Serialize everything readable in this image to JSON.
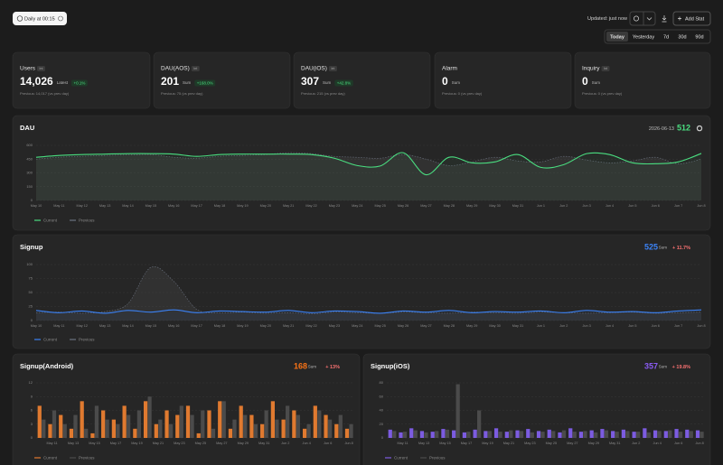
{
  "header": {
    "schedule": "Daily at 00:15",
    "updated": "Updated: just now",
    "add_button": "Add Stat"
  },
  "ranges": {
    "options": [
      "Today",
      "Yesterday",
      "7d",
      "30d",
      "90d"
    ],
    "active": 0
  },
  "stats": [
    {
      "title": "Users",
      "badge": "Int",
      "value": "14,026",
      "kind": "Latest",
      "change": "+0.1%",
      "previous": "Previous: 14,017 (vs prev day)"
    },
    {
      "title": "DAU(AOS)",
      "badge": "Int",
      "value": "201",
      "kind": "Sum",
      "change": "+168.0%",
      "previous": "Previous: 75 (vs prev day)"
    },
    {
      "title": "DAU(iOS)",
      "badge": "Int",
      "value": "307",
      "kind": "Sum",
      "change": "+42.8%",
      "previous": "Previous: 215 (vs prev day)"
    },
    {
      "title": "Alarm",
      "value": "0",
      "kind": "Sum",
      "previous": "Previous: 0 (vs prev day)"
    },
    {
      "title": "Inquiry",
      "badge": "Int",
      "value": "0",
      "kind": "Sum",
      "previous": "Previous: 0 (vs prev day)"
    }
  ],
  "charts": [
    {
      "type": "line",
      "title": "DAU",
      "date": "2026-06-13",
      "total": 512,
      "total_color": "#4ade80",
      "categories": [
        "May 10",
        "May 11",
        "May 12",
        "May 13",
        "May 14",
        "May 15",
        "May 16",
        "May 17",
        "May 18",
        "May 19",
        "May 20",
        "May 21",
        "May 22",
        "May 23",
        "May 24",
        "May 25",
        "May 26",
        "May 27",
        "May 28",
        "May 29",
        "May 30",
        "May 31",
        "Jun 1",
        "Jun 2",
        "Jun 3",
        "Jun 4",
        "Jun 5",
        "Jun 6",
        "Jun 7",
        "Jun 8"
      ],
      "ylim": [
        0,
        600
      ],
      "yticks": [
        0,
        150,
        300,
        450,
        600
      ],
      "series": [
        {
          "name": "Current",
          "color": "#4ade80",
          "values": [
            470,
            490,
            500,
            505,
            510,
            510,
            505,
            480,
            500,
            505,
            505,
            505,
            500,
            460,
            380,
            375,
            520,
            280,
            470,
            410,
            420,
            500,
            360,
            390,
            510,
            500,
            410,
            400,
            420,
            512
          ]
        },
        {
          "name": "Previous",
          "color": "#6b7280",
          "values": [
            450,
            470,
            480,
            490,
            495,
            500,
            470,
            460,
            480,
            490,
            500,
            520,
            510,
            480,
            470,
            460,
            500,
            450,
            380,
            420,
            470,
            430,
            420,
            480,
            440,
            410,
            430,
            470,
            400,
            450
          ]
        }
      ]
    },
    {
      "type": "line",
      "title": "Signup",
      "total": 525,
      "total_color": "#3b82f6",
      "kind": "Sum",
      "change": "+ 11.7%",
      "change_color": "#f87171",
      "categories": [
        "May 10",
        "May 11",
        "May 12",
        "May 13",
        "May 14",
        "May 15",
        "May 16",
        "May 17",
        "May 18",
        "May 19",
        "May 20",
        "May 21",
        "May 22",
        "May 23",
        "May 24",
        "May 25",
        "May 26",
        "May 27",
        "May 28",
        "May 29",
        "May 30",
        "May 31",
        "Jun 1",
        "Jun 2",
        "Jun 3",
        "Jun 4",
        "Jun 5",
        "Jun 6",
        "Jun 7",
        "Jun 8"
      ],
      "ylim": [
        0,
        100
      ],
      "yticks": [
        0,
        25,
        50,
        75,
        100
      ],
      "series": [
        {
          "name": "Current",
          "color": "#3b82f6",
          "values": [
            18,
            14,
            17,
            13,
            18,
            15,
            19,
            14,
            17,
            16,
            15,
            18,
            14,
            17,
            16,
            13,
            17,
            15,
            18,
            14,
            16,
            15,
            17,
            14,
            18,
            15,
            16,
            14,
            17,
            19
          ]
        },
        {
          "name": "Previous",
          "color": "#6b7280",
          "values": [
            14,
            15,
            13,
            16,
            30,
            95,
            70,
            20,
            14,
            15,
            13,
            14,
            12,
            15,
            14,
            13,
            15,
            14,
            13,
            15,
            14,
            13,
            15,
            14,
            13,
            14,
            15,
            13,
            14,
            15
          ]
        }
      ]
    },
    {
      "type": "bar",
      "title": "Signup(Android)",
      "total": 168,
      "total_color": "#f97316",
      "kind": "Sum",
      "change": "+ 13%",
      "change_color": "#f87171",
      "categories": [
        null,
        "May 11",
        null,
        "May 13",
        null,
        "May 15",
        null,
        "May 17",
        null,
        "May 19",
        null,
        "May 21",
        null,
        "May 23",
        null,
        "May 25",
        null,
        "May 27",
        null,
        "May 29",
        null,
        "May 31",
        null,
        "Jun 2",
        null,
        "Jun 4",
        null,
        "Jun 6",
        null,
        "Jun 8"
      ],
      "ylim": [
        0,
        12
      ],
      "yticks": [
        0,
        3,
        6,
        9,
        12
      ],
      "series": [
        {
          "name": "Current",
          "color": "#e07a30",
          "values": [
            7,
            3,
            5,
            2,
            8,
            1,
            6,
            4,
            7,
            2,
            8,
            3,
            6,
            5,
            7,
            1,
            6,
            8,
            2,
            7,
            5,
            3,
            8,
            4,
            6,
            2,
            7,
            5,
            3,
            2
          ]
        },
        {
          "name": "Previous",
          "color": "#4b4b4b",
          "values": [
            4,
            6,
            3,
            5,
            2,
            7,
            4,
            3,
            5,
            6,
            9,
            4,
            3,
            7,
            5,
            6,
            2,
            8,
            4,
            5,
            3,
            6,
            4,
            7,
            5,
            3,
            6,
            4,
            5,
            3
          ]
        }
      ]
    },
    {
      "type": "bar",
      "title": "Signup(iOS)",
      "total": 357,
      "total_color": "#8b5cf6",
      "kind": "Sum",
      "change": "+ 19.8%",
      "change_color": "#f87171",
      "categories": [
        null,
        "May 11",
        null,
        "May 13",
        null,
        "May 15",
        null,
        "May 17",
        null,
        "May 19",
        null,
        "May 21",
        null,
        "May 23",
        null,
        "May 25",
        null,
        "May 27",
        null,
        "May 29",
        null,
        "May 31",
        null,
        "Jun 2",
        null,
        "Jun 4",
        null,
        "Jun 6",
        null,
        "Jun 8"
      ],
      "ylim": [
        0,
        80
      ],
      "yticks": [
        0,
        20,
        40,
        60,
        80
      ],
      "series": [
        {
          "name": "Current",
          "color": "#7c5ce0",
          "values": [
            12,
            8,
            14,
            10,
            9,
            13,
            11,
            8,
            12,
            10,
            14,
            9,
            11,
            13,
            10,
            12,
            8,
            14,
            9,
            11,
            13,
            10,
            12,
            9,
            14,
            11,
            10,
            13,
            12,
            11
          ]
        },
        {
          "name": "Previous",
          "color": "#4b4b4b",
          "values": [
            10,
            9,
            11,
            8,
            10,
            12,
            78,
            9,
            40,
            10,
            9,
            11,
            10,
            8,
            9,
            10,
            11,
            9,
            10,
            8,
            11,
            9,
            10,
            9,
            8,
            10,
            11,
            9,
            10,
            9
          ]
        }
      ]
    }
  ]
}
